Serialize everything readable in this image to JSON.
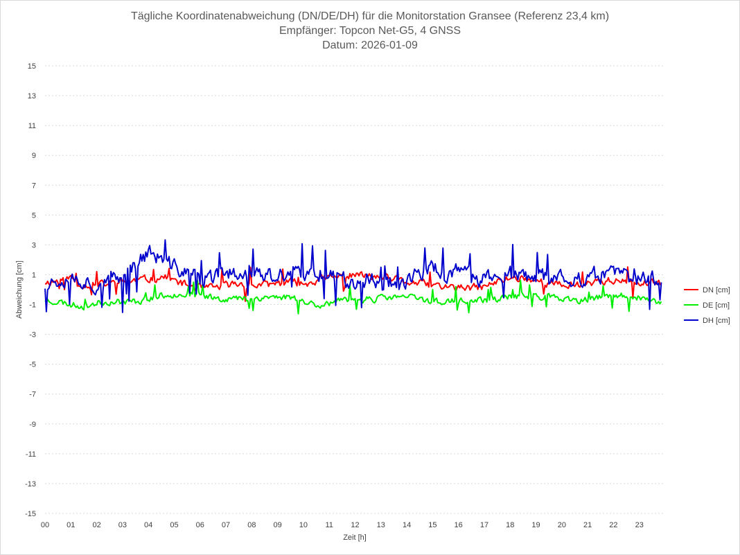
{
  "chart_data": {
    "type": "line",
    "title": [
      "Tägliche Koordinatenabweichung (DN/DE/DH) für die Monitorstation Gransee (Referenz 23,4 km)",
      "Empfänger: Topcon Net-G5, 4 GNSS",
      "Datum: 2026-01-09"
    ],
    "xlabel": "Zeit [h]",
    "ylabel": "Abweichung [cm]",
    "xlim": [
      0,
      24
    ],
    "ylim": [
      -15,
      15
    ],
    "xticks": [
      "00",
      "01",
      "02",
      "03",
      "04",
      "05",
      "06",
      "07",
      "08",
      "09",
      "10",
      "11",
      "12",
      "13",
      "14",
      "15",
      "16",
      "17",
      "18",
      "19",
      "20",
      "21",
      "22",
      "23"
    ],
    "yticks": [
      15,
      13,
      11,
      9,
      7,
      5,
      3,
      1,
      -1,
      -3,
      -5,
      -7,
      -9,
      -11,
      -13,
      -15
    ],
    "grid": true,
    "legend_position": "right",
    "sample_interval_min": 3,
    "series": [
      {
        "name": "DN [cm]",
        "color": "#ff0000",
        "keypoints": [
          [
            0,
            0.5
          ],
          [
            0.5,
            0.6
          ],
          [
            1,
            0.8
          ],
          [
            1.3,
            0.4
          ],
          [
            1.7,
            0.3
          ],
          [
            2,
            0.3
          ],
          [
            2.5,
            0.4
          ],
          [
            3,
            0.5
          ],
          [
            3.5,
            0.6
          ],
          [
            4,
            0.7
          ],
          [
            4.5,
            0.9
          ],
          [
            5,
            0.6
          ],
          [
            5.5,
            0.3
          ],
          [
            6,
            0.1
          ],
          [
            6.5,
            0.1
          ],
          [
            7,
            0.3
          ],
          [
            7.5,
            0.4
          ],
          [
            8,
            0.3
          ],
          [
            8.5,
            0.3
          ],
          [
            9,
            0.4
          ],
          [
            9.5,
            0.5
          ],
          [
            10,
            0.4
          ],
          [
            10.5,
            0.6
          ],
          [
            11,
            0.8
          ],
          [
            11.5,
            0.9
          ],
          [
            12,
            1.0
          ],
          [
            12.5,
            0.9
          ],
          [
            13,
            0.8
          ],
          [
            13.5,
            0.7
          ],
          [
            14,
            0.5
          ],
          [
            14.5,
            0.4
          ],
          [
            15,
            0.3
          ],
          [
            15.5,
            0.2
          ],
          [
            16,
            0.1
          ],
          [
            16.5,
            0.1
          ],
          [
            17,
            0.2
          ],
          [
            17.5,
            0.5
          ],
          [
            18,
            0.8
          ],
          [
            18.5,
            0.8
          ],
          [
            19,
            0.6
          ],
          [
            19.5,
            0.4
          ],
          [
            20,
            0.3
          ],
          [
            20.5,
            0.3
          ],
          [
            21,
            0.5
          ],
          [
            21.5,
            0.6
          ],
          [
            22,
            0.6
          ],
          [
            22.5,
            0.5
          ],
          [
            23,
            0.4
          ],
          [
            23.5,
            0.4
          ],
          [
            23.85,
            0.3
          ]
        ],
        "noise": 0.4,
        "spike_prob": 0.05,
        "spike_amp": 0.9,
        "seed": 11
      },
      {
        "name": "DE [cm]",
        "color": "#00ee00",
        "keypoints": [
          [
            0,
            -0.7
          ],
          [
            0.5,
            -0.8
          ],
          [
            1,
            -1.0
          ],
          [
            1.5,
            -1.1
          ],
          [
            2,
            -0.9
          ],
          [
            2.5,
            -0.8
          ],
          [
            3,
            -0.8
          ],
          [
            3.5,
            -0.8
          ],
          [
            4,
            -0.6
          ],
          [
            4.5,
            -0.4
          ],
          [
            5,
            -0.3
          ],
          [
            5.5,
            -0.3
          ],
          [
            6,
            -0.4
          ],
          [
            6.5,
            -0.5
          ],
          [
            7,
            -0.6
          ],
          [
            7.5,
            -0.6
          ],
          [
            8,
            -0.6
          ],
          [
            8.5,
            -0.5
          ],
          [
            9,
            -0.5
          ],
          [
            9.5,
            -0.5
          ],
          [
            10,
            -0.8
          ],
          [
            10.5,
            -1.0
          ],
          [
            11,
            -0.9
          ],
          [
            11.5,
            -0.8
          ],
          [
            12,
            -0.7
          ],
          [
            12.5,
            -0.6
          ],
          [
            13,
            -0.6
          ],
          [
            13.5,
            -0.5
          ],
          [
            14,
            -0.5
          ],
          [
            14.5,
            -0.6
          ],
          [
            15,
            -0.8
          ],
          [
            15.5,
            -0.8
          ],
          [
            16,
            -0.8
          ],
          [
            16.5,
            -0.8
          ],
          [
            17,
            -0.7
          ],
          [
            17.5,
            -0.6
          ],
          [
            18,
            -0.5
          ],
          [
            18.5,
            -0.4
          ],
          [
            19,
            -0.4
          ],
          [
            19.5,
            -0.5
          ],
          [
            20,
            -0.7
          ],
          [
            20.5,
            -0.8
          ],
          [
            21,
            -0.7
          ],
          [
            21.5,
            -0.5
          ],
          [
            22,
            -0.5
          ],
          [
            22.5,
            -0.4
          ],
          [
            23,
            -0.5
          ],
          [
            23.5,
            -0.9
          ],
          [
            23.85,
            -0.8
          ]
        ],
        "noise": 0.35,
        "spike_prob": 0.04,
        "spike_amp": 0.8,
        "seed": 23
      },
      {
        "name": "DH [cm]",
        "color": "#0000cc",
        "keypoints": [
          [
            0,
            0.3
          ],
          [
            0.5,
            0.7
          ],
          [
            1,
            0.9
          ],
          [
            1.5,
            0.6
          ],
          [
            2,
            0.3
          ],
          [
            2.5,
            0.5
          ],
          [
            3,
            0.8
          ],
          [
            3.5,
            1.8
          ],
          [
            4,
            2.5
          ],
          [
            4.5,
            2.0
          ],
          [
            5,
            1.5
          ],
          [
            5.5,
            1.2
          ],
          [
            6,
            0.6
          ],
          [
            6.5,
            0.8
          ],
          [
            7,
            1.0
          ],
          [
            7.5,
            1.2
          ],
          [
            8,
            1.2
          ],
          [
            8.5,
            0.9
          ],
          [
            9,
            0.8
          ],
          [
            9.5,
            1.2
          ],
          [
            10,
            0.8
          ],
          [
            10.5,
            1.2
          ],
          [
            11,
            1.0
          ],
          [
            11.5,
            0.7
          ],
          [
            12,
            0.6
          ],
          [
            12.5,
            0.7
          ],
          [
            13,
            0.6
          ],
          [
            13.5,
            0.5
          ],
          [
            14,
            0.6
          ],
          [
            14.5,
            1.0
          ],
          [
            15,
            1.6
          ],
          [
            15.5,
            1.0
          ],
          [
            16,
            1.2
          ],
          [
            16.5,
            0.8
          ],
          [
            17,
            0.8
          ],
          [
            17.5,
            0.9
          ],
          [
            18,
            1.0
          ],
          [
            18.5,
            0.8
          ],
          [
            19,
            0.7
          ],
          [
            19.5,
            0.8
          ],
          [
            20,
            1.0
          ],
          [
            20.5,
            0.7
          ],
          [
            21,
            0.8
          ],
          [
            21.5,
            1.0
          ],
          [
            22,
            1.2
          ],
          [
            22.5,
            0.8
          ],
          [
            23,
            0.6
          ],
          [
            23.5,
            0.7
          ],
          [
            23.85,
            0.8
          ]
        ],
        "noise": 0.85,
        "spike_prob": 0.07,
        "spike_amp": 1.8,
        "seed": 37
      }
    ]
  }
}
